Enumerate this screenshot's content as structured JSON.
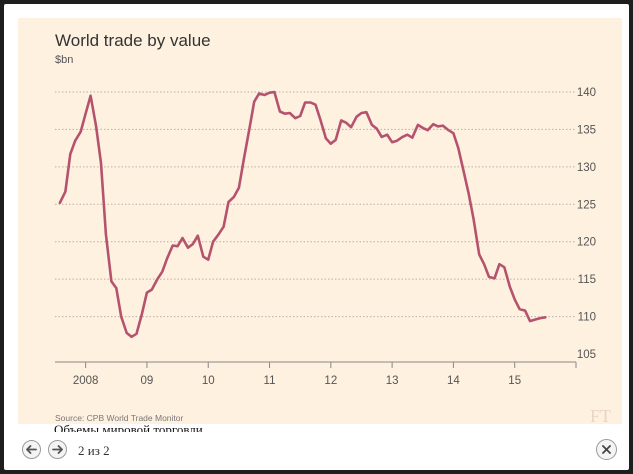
{
  "viewer": {
    "caption": "Объемы мировой торговли",
    "counter": "2 из 2",
    "prev_icon": "arrow-left-icon",
    "next_icon": "arrow-right-icon",
    "close_icon": "close-icon"
  },
  "colors": {
    "background": "#fff1e0",
    "line": "#b5536e",
    "grid": "#b9b0a6"
  },
  "chart_data": {
    "type": "line",
    "title": "World trade by value",
    "unit_label": "$bn",
    "source": "Source: CPB World Trade Monitor",
    "logo": "FT",
    "ylim": [
      105,
      140
    ],
    "yticks": [
      "105",
      "110",
      "115",
      "120",
      "125",
      "130",
      "135",
      "140"
    ],
    "xlim": [
      2007.5,
      2016.0
    ],
    "xtick_labels": [
      "2008",
      "09",
      "10",
      "11",
      "12",
      "13",
      "14",
      "15"
    ],
    "xtick_positions": [
      2008,
      2009,
      2010,
      2011,
      2012,
      2013,
      2014,
      2015
    ],
    "grid": "horizontal-dotted",
    "series": [
      {
        "x": [
          2007.58,
          2007.67,
          2007.75,
          2007.83,
          2007.92,
          2008.0,
          2008.08,
          2008.17,
          2008.25,
          2008.33,
          2008.42,
          2008.5,
          2008.58,
          2008.67,
          2008.75,
          2008.83,
          2008.92,
          2009.0,
          2009.08,
          2009.17,
          2009.25,
          2009.33,
          2009.42,
          2009.5,
          2009.58,
          2009.67,
          2009.75,
          2009.83,
          2009.92,
          2010.0,
          2010.08,
          2010.17,
          2010.25,
          2010.33,
          2010.42,
          2010.5,
          2010.58,
          2010.67,
          2010.75,
          2010.83,
          2010.92,
          2011.0,
          2011.08,
          2011.17,
          2011.25,
          2011.33,
          2011.42,
          2011.5,
          2011.58,
          2011.67,
          2011.75,
          2011.83,
          2011.92,
          2012.0,
          2012.08,
          2012.17,
          2012.25,
          2012.33,
          2012.42,
          2012.5,
          2012.58,
          2012.67,
          2012.75,
          2012.83,
          2012.92,
          2013.0,
          2013.08,
          2013.17,
          2013.25,
          2013.33,
          2013.42,
          2013.5,
          2013.58,
          2013.67,
          2013.75,
          2013.83,
          2013.92,
          2014.0,
          2014.08,
          2014.17,
          2014.25,
          2014.33,
          2014.42,
          2014.5,
          2014.58,
          2014.67,
          2014.75,
          2014.83,
          2014.92,
          2015.0,
          2015.08,
          2015.17,
          2015.25,
          2015.33,
          2015.42,
          2015.5
        ],
        "y": [
          125.2,
          126.7,
          131.7,
          133.5,
          134.7,
          137.1,
          139.5,
          135.4,
          130.5,
          121.0,
          114.7,
          113.8,
          110.0,
          107.8,
          107.3,
          107.7,
          110.4,
          113.2,
          113.6,
          115.0,
          116.0,
          117.8,
          119.5,
          119.4,
          120.5,
          119.2,
          119.7,
          120.8,
          118.0,
          117.6,
          120.0,
          121.0,
          122.0,
          125.3,
          126.0,
          127.2,
          131.0,
          135.0,
          138.7,
          139.8,
          139.6,
          139.9,
          140.0,
          137.4,
          137.1,
          137.2,
          136.5,
          136.8,
          138.6,
          138.6,
          138.3,
          136.3,
          133.8,
          133.1,
          133.6,
          136.2,
          135.9,
          135.3,
          136.7,
          137.2,
          137.3,
          135.6,
          135.1,
          134.0,
          134.3,
          133.3,
          133.5,
          134.0,
          134.3,
          133.9,
          135.6,
          135.2,
          134.9,
          135.7,
          135.4,
          135.5,
          134.9,
          134.5,
          132.5,
          129.3,
          126.4,
          123.0,
          118.3,
          117.0,
          115.3,
          115.1,
          117.0,
          116.6,
          114.0,
          112.3,
          111.0,
          110.8,
          109.4,
          109.6,
          109.8,
          109.9
        ]
      }
    ]
  }
}
